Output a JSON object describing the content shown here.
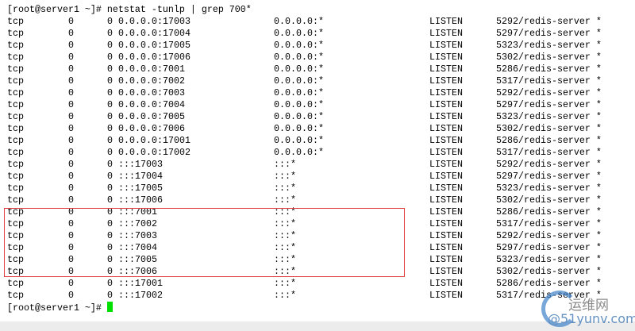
{
  "terminal": {
    "command_prompt": "[root@server1 ~]# ",
    "command": "netstat -tunlp | grep 700*",
    "rows": [
      [
        "tcp",
        "0",
        "0",
        "0.0.0.0:17003",
        "0.0.0.0:*",
        "LISTEN",
        "5292/redis-server *"
      ],
      [
        "tcp",
        "0",
        "0",
        "0.0.0.0:17004",
        "0.0.0.0:*",
        "LISTEN",
        "5297/redis-server *"
      ],
      [
        "tcp",
        "0",
        "0",
        "0.0.0.0:17005",
        "0.0.0.0:*",
        "LISTEN",
        "5323/redis-server *"
      ],
      [
        "tcp",
        "0",
        "0",
        "0.0.0.0:17006",
        "0.0.0.0:*",
        "LISTEN",
        "5302/redis-server *"
      ],
      [
        "tcp",
        "0",
        "0",
        "0.0.0.0:7001",
        "0.0.0.0:*",
        "LISTEN",
        "5286/redis-server *"
      ],
      [
        "tcp",
        "0",
        "0",
        "0.0.0.0:7002",
        "0.0.0.0:*",
        "LISTEN",
        "5317/redis-server *"
      ],
      [
        "tcp",
        "0",
        "0",
        "0.0.0.0:7003",
        "0.0.0.0:*",
        "LISTEN",
        "5292/redis-server *"
      ],
      [
        "tcp",
        "0",
        "0",
        "0.0.0.0:7004",
        "0.0.0.0:*",
        "LISTEN",
        "5297/redis-server *"
      ],
      [
        "tcp",
        "0",
        "0",
        "0.0.0.0:7005",
        "0.0.0.0:*",
        "LISTEN",
        "5323/redis-server *"
      ],
      [
        "tcp",
        "0",
        "0",
        "0.0.0.0:7006",
        "0.0.0.0:*",
        "LISTEN",
        "5302/redis-server *"
      ],
      [
        "tcp",
        "0",
        "0",
        "0.0.0.0:17001",
        "0.0.0.0:*",
        "LISTEN",
        "5286/redis-server *"
      ],
      [
        "tcp",
        "0",
        "0",
        "0.0.0.0:17002",
        "0.0.0.0:*",
        "LISTEN",
        "5317/redis-server *"
      ],
      [
        "tcp",
        "0",
        "0",
        ":::17003",
        ":::*",
        "LISTEN",
        "5292/redis-server *"
      ],
      [
        "tcp",
        "0",
        "0",
        ":::17004",
        ":::*",
        "LISTEN",
        "5297/redis-server *"
      ],
      [
        "tcp",
        "0",
        "0",
        ":::17005",
        ":::*",
        "LISTEN",
        "5323/redis-server *"
      ],
      [
        "tcp",
        "0",
        "0",
        ":::17006",
        ":::*",
        "LISTEN",
        "5302/redis-server *"
      ],
      [
        "tcp",
        "0",
        "0",
        ":::7001",
        ":::*",
        "LISTEN",
        "5286/redis-server *"
      ],
      [
        "tcp",
        "0",
        "0",
        ":::7002",
        ":::*",
        "LISTEN",
        "5317/redis-server *"
      ],
      [
        "tcp",
        "0",
        "0",
        ":::7003",
        ":::*",
        "LISTEN",
        "5292/redis-server *"
      ],
      [
        "tcp",
        "0",
        "0",
        ":::7004",
        ":::*",
        "LISTEN",
        "5297/redis-server *"
      ],
      [
        "tcp",
        "0",
        "0",
        ":::7005",
        ":::*",
        "LISTEN",
        "5323/redis-server *"
      ],
      [
        "tcp",
        "0",
        "0",
        ":::7006",
        ":::*",
        "LISTEN",
        "5302/redis-server *"
      ],
      [
        "tcp",
        "0",
        "0",
        ":::17001",
        ":::*",
        "LISTEN",
        "5286/redis-server *"
      ],
      [
        "tcp",
        "0",
        "0",
        ":::17002",
        ":::*",
        "LISTEN",
        "5317/redis-server *"
      ]
    ],
    "final_prompt": "[root@server1 ~]# ",
    "cursor_color": "#00e000",
    "highlight_color": "#e04040"
  },
  "watermark": {
    "line1": "运维网",
    "line2": "@51yunv.com"
  }
}
